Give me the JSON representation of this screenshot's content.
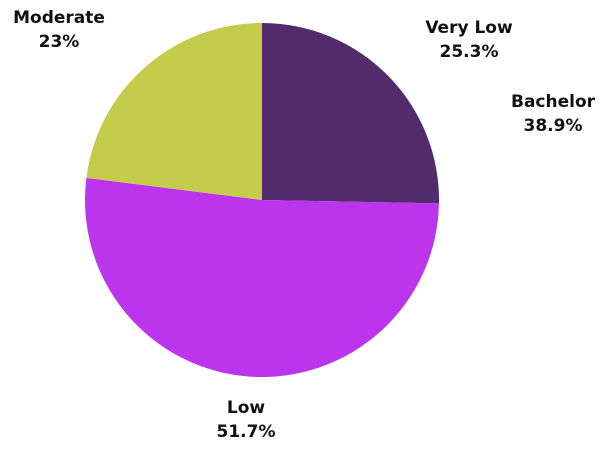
{
  "chart_data": {
    "type": "pie",
    "title": "",
    "start_angle_deg": 0,
    "direction": "clockwise",
    "slices": [
      {
        "label": "Very Low",
        "value": 25.3,
        "value_label": "25.3%",
        "color": "#522B6C"
      },
      {
        "label": "Low",
        "value": 51.7,
        "value_label": "51.7%",
        "color": "#BB35EC"
      },
      {
        "label": "Moderate",
        "value": 23,
        "value_label": "23%",
        "color": "#C5CC4B"
      }
    ],
    "extra_labels": [
      {
        "label": "Bachelor",
        "value_label": "38.9%"
      }
    ]
  }
}
